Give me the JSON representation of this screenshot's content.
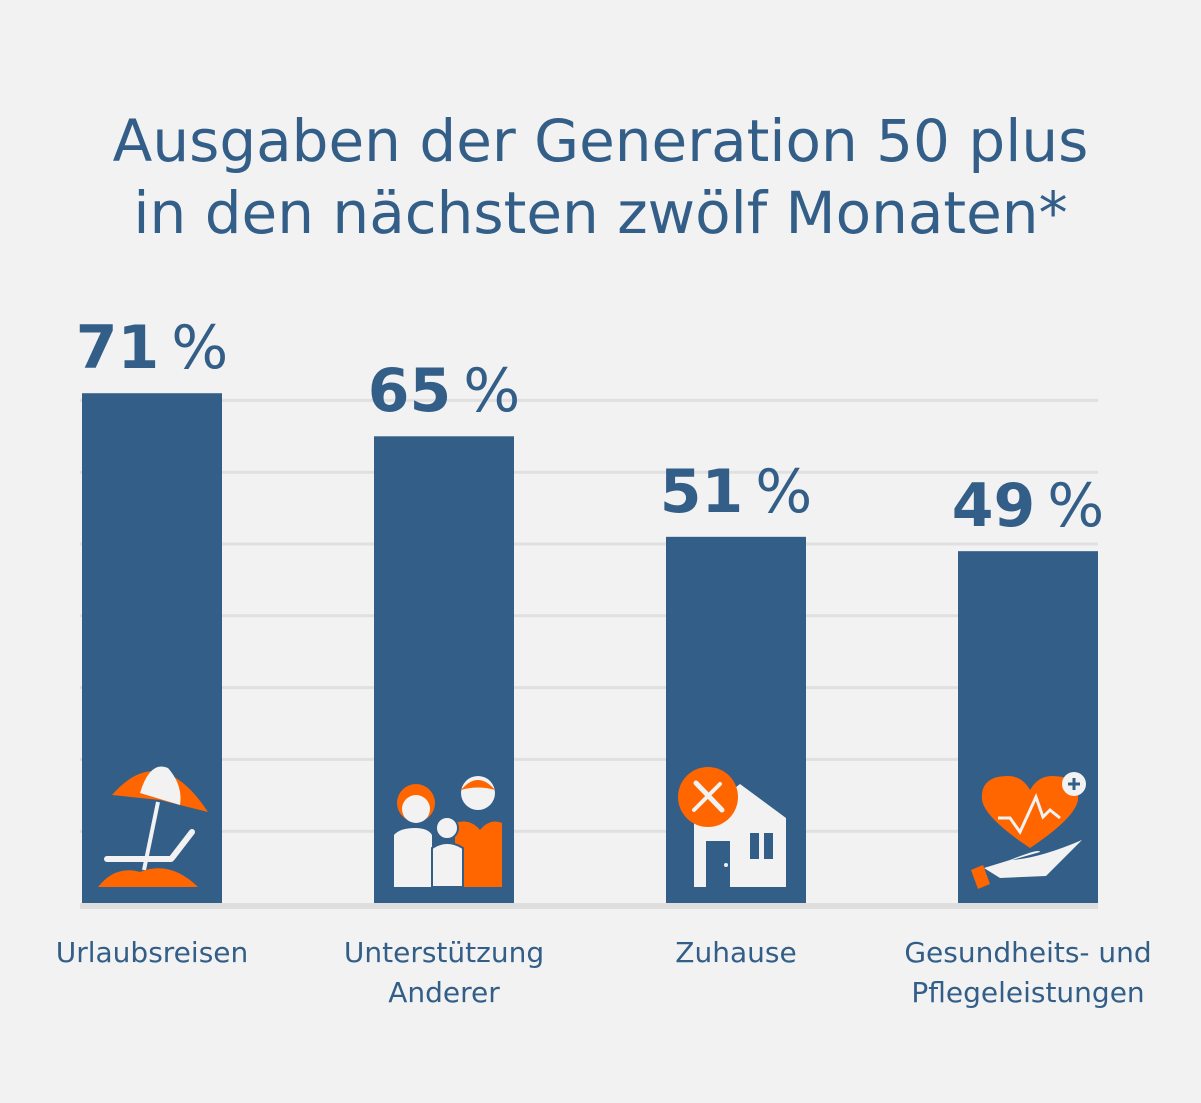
{
  "chart_data": {
    "type": "bar",
    "title": [
      "Ausgaben der Generation 50 plus",
      "in den nächsten zwölf Monaten*"
    ],
    "categories": [
      "Urlaubsreisen",
      "Unterstützung Anderer",
      "Zuhause",
      "Gesundheits- und Pflegeleistungen"
    ],
    "category_lines": [
      [
        "Urlaubsreisen"
      ],
      [
        "Unterstützung",
        "Anderer"
      ],
      [
        "Zuhause"
      ],
      [
        "Gesundheits- und",
        "Pflegeleistungen"
      ]
    ],
    "values": [
      71,
      65,
      51,
      49
    ],
    "value_labels": [
      "71",
      "65",
      "51",
      "49"
    ],
    "unit": "%",
    "ylim": [
      0,
      71
    ],
    "grid": true,
    "icons": [
      "beach-umbrella-icon",
      "family-icon",
      "house-repair-icon",
      "health-care-icon"
    ],
    "colors": {
      "bar": "#335e88",
      "accent": "#ff6600",
      "background": "#f2f2f2",
      "grid": "#e0e0e0"
    }
  }
}
